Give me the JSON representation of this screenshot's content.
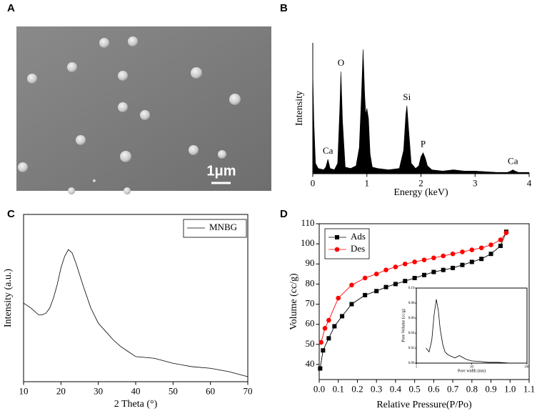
{
  "chart_data": [
    {
      "type": "image",
      "panel_label": "A",
      "scale_bar_label": "1μm"
    },
    {
      "type": "area",
      "panel_label": "B",
      "xlabel": "Energy (keV)",
      "ylabel": "Intensity",
      "color": "#000000",
      "x": [
        0,
        0.02,
        0.05,
        0.1,
        0.2,
        0.24,
        0.28,
        0.32,
        0.4,
        0.46,
        0.5,
        0.52,
        0.55,
        0.6,
        0.7,
        0.8,
        0.86,
        0.9,
        0.93,
        0.96,
        0.98,
        1.0,
        1.03,
        1.06,
        1.1,
        1.2,
        1.4,
        1.6,
        1.68,
        1.72,
        1.74,
        1.77,
        1.82,
        1.9,
        1.96,
        2.0,
        2.04,
        2.08,
        2.12,
        2.2,
        2.4,
        2.6,
        2.8,
        3.0,
        3.4,
        3.6,
        3.66,
        3.7,
        3.74,
        3.8,
        4.0
      ],
      "values": [
        78,
        40,
        8,
        4,
        3,
        5,
        11,
        4,
        3,
        8,
        50,
        78,
        40,
        5,
        4,
        6,
        20,
        60,
        95,
        60,
        45,
        50,
        42,
        15,
        5,
        4,
        3,
        4,
        18,
        45,
        52,
        35,
        8,
        4,
        6,
        13,
        16,
        12,
        6,
        3,
        2,
        3,
        2,
        2,
        1,
        1,
        2,
        3,
        2,
        1,
        1
      ],
      "xlim": [
        0,
        4
      ],
      "ylim": [
        0,
        100
      ],
      "xticks": [
        0,
        1,
        2,
        3,
        4
      ],
      "annotations": [
        {
          "text": "Ca",
          "x": 0.28
        },
        {
          "text": "O",
          "x": 0.52
        },
        {
          "text": "Si",
          "x": 1.74
        },
        {
          "text": "P",
          "x": 2.04
        },
        {
          "text": "Ca",
          "x": 3.7
        }
      ]
    },
    {
      "type": "line",
      "panel_label": "C",
      "xlabel": "2 Theta (°)",
      "ylabel": "Intensity (a.u.)",
      "frame": true,
      "legend": "upper right",
      "x": [
        10,
        12,
        14,
        15,
        16,
        17,
        18,
        19,
        20,
        21,
        22,
        23,
        24,
        25,
        26,
        28,
        30,
        32,
        34,
        36,
        38,
        40,
        45,
        50,
        55,
        60,
        65,
        70
      ],
      "series": [
        {
          "name": "MNBG",
          "color": "#000000",
          "values": [
            47,
            44,
            40,
            40,
            41,
            44,
            50,
            58,
            68,
            75,
            79,
            77,
            71,
            64,
            57,
            44,
            35,
            30,
            25,
            21,
            18,
            15,
            14,
            11,
            9,
            8,
            6,
            3
          ]
        }
      ],
      "xlim": [
        10,
        70
      ],
      "ylim": [
        0,
        100
      ],
      "xticks": [
        10,
        20,
        30,
        40,
        50,
        60,
        70
      ]
    },
    {
      "type": "line",
      "panel_label": "D",
      "xlabel": "Relative Pressure(P/Po)",
      "ylabel": "Volume (cc/g)",
      "frame": true,
      "legend": "upper left",
      "series": [
        {
          "name": "Ads",
          "color": "#000000",
          "marker": "square",
          "x": [
            0.005,
            0.02,
            0.05,
            0.08,
            0.12,
            0.17,
            0.24,
            0.3,
            0.35,
            0.4,
            0.45,
            0.5,
            0.55,
            0.6,
            0.65,
            0.7,
            0.75,
            0.8,
            0.85,
            0.9,
            0.95,
            0.98
          ],
          "values": [
            38,
            47,
            53,
            59,
            64,
            70,
            74.5,
            76.5,
            78.5,
            80,
            81.5,
            83,
            84.5,
            86,
            87,
            88,
            89.5,
            91,
            92.5,
            95,
            99,
            106
          ]
        },
        {
          "name": "Des",
          "color": "#ff0000",
          "marker": "circle",
          "x": [
            0.01,
            0.03,
            0.05,
            0.1,
            0.17,
            0.24,
            0.3,
            0.35,
            0.4,
            0.45,
            0.5,
            0.55,
            0.6,
            0.65,
            0.7,
            0.75,
            0.8,
            0.85,
            0.9,
            0.95,
            0.98
          ],
          "values": [
            51,
            58,
            62,
            73,
            79.5,
            83,
            85,
            87,
            88.5,
            90,
            91,
            92,
            93,
            94,
            95,
            96,
            97,
            98,
            99.5,
            102,
            105.5
          ]
        }
      ],
      "xlim": [
        0,
        1.1
      ],
      "ylim": [
        32.5,
        110
      ],
      "xticks": [
        {
          "value": 0,
          "label": "0.0"
        },
        0.1,
        0.2,
        0.3,
        0.4,
        0.5,
        0.6,
        0.7,
        0.8,
        0.9,
        {
          "value": 1,
          "label": "1.0"
        },
        1.1
      ],
      "yticks": [
        40,
        50,
        60,
        70,
        80,
        90,
        100,
        110
      ],
      "inset": {
        "type": "line",
        "xlabel": "Pore width (nm)",
        "ylabel": "Pore Volume (cc/g)",
        "frame": true,
        "xscale": "log",
        "x": [
          1.5,
          1.7,
          1.9,
          2.1,
          2.3,
          2.5,
          2.7,
          3.0,
          3.3,
          3.6,
          4,
          5,
          6,
          8,
          10,
          15,
          20,
          30,
          50,
          80
        ],
        "series": [
          {
            "color": "#000000",
            "values": [
              0.02,
              0.015,
              0.03,
              0.065,
              0.085,
              0.07,
              0.045,
              0.025,
              0.015,
              0.012,
              0.01,
              0.007,
              0.01,
              0.005,
              0.003,
              0.002,
              0.001,
              0.001,
              0,
              0
            ]
          }
        ],
        "xlim": [
          1,
          100
        ],
        "ylim": [
          0,
          0.1
        ],
        "xticks": [
          1,
          10,
          100
        ],
        "yticks": [
          {
            "value": 0,
            "label": "0.00"
          },
          0.02,
          0.04,
          0.06,
          0.08,
          {
            "value": 0.1,
            "label": "0.10"
          }
        ]
      }
    }
  ]
}
